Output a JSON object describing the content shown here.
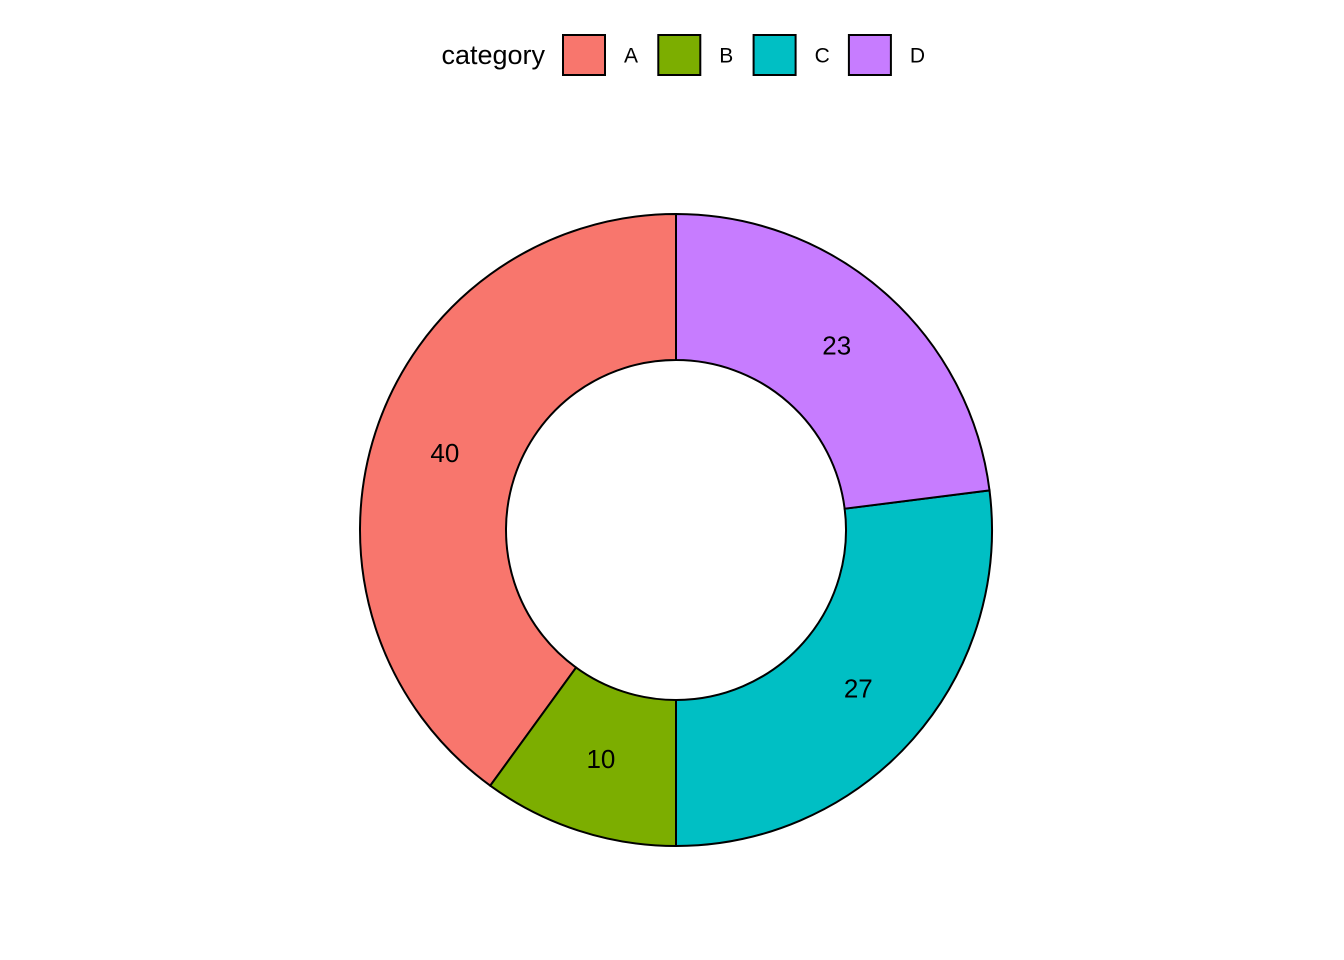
{
  "chart_data": {
    "type": "donut",
    "legend_title": "category",
    "legend_position": "top",
    "categories": [
      "A",
      "B",
      "C",
      "D"
    ],
    "values": [
      40,
      10,
      27,
      23
    ],
    "colors": [
      "#f8766d",
      "#7cae00",
      "#00bfc4",
      "#c77cff"
    ]
  }
}
